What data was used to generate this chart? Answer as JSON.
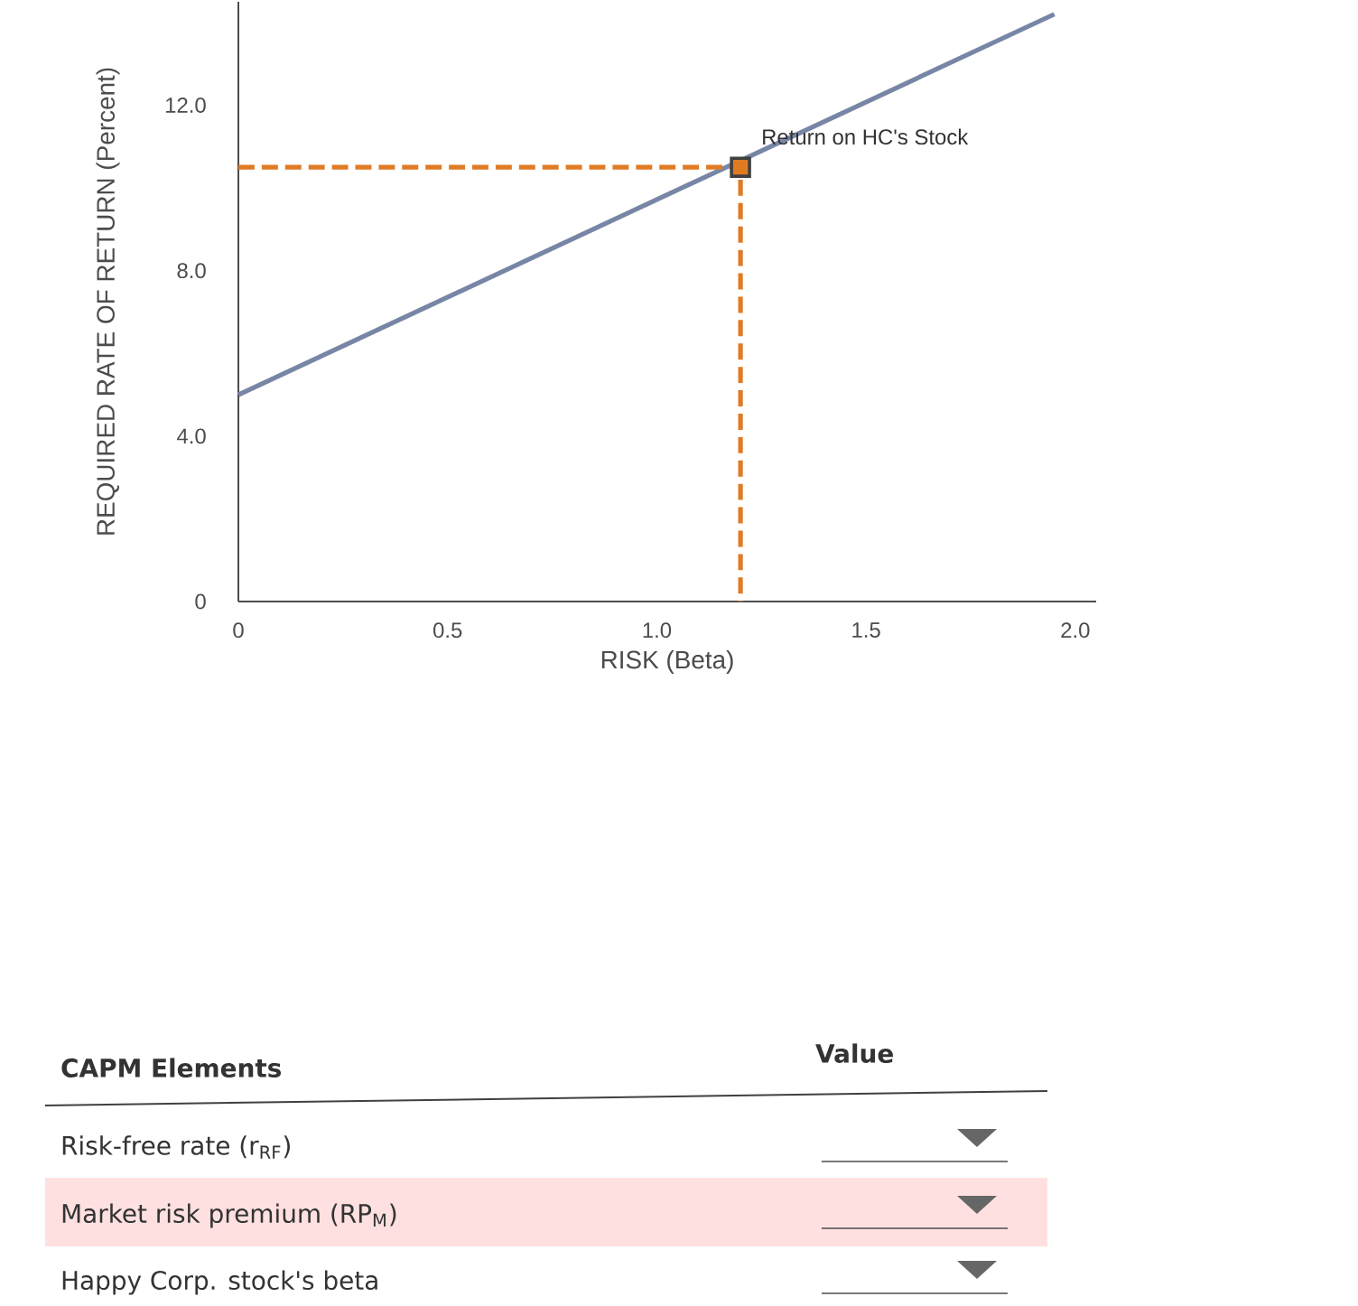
{
  "chart_data": {
    "type": "line",
    "xlabel": "RISK (Beta)",
    "ylabel": "REQUIRED RATE OF RETURN (Percent)",
    "xlim": [
      0,
      2.05
    ],
    "ylim": [
      0,
      14.5
    ],
    "xticks": [
      {
        "value": 0,
        "label": "0"
      },
      0.5,
      {
        "value": 1,
        "label": "1.0"
      },
      1.5,
      {
        "value": 2,
        "label": "2.0"
      }
    ],
    "yticks": [
      0,
      {
        "value": 4,
        "label": "4.0"
      },
      {
        "value": 8,
        "label": "8.0"
      },
      {
        "value": 12,
        "label": "12.0"
      }
    ],
    "series": [
      {
        "color": "#7886a6",
        "x": [
          0,
          1.95
        ],
        "values": [
          5.0,
          14.2
        ],
        "line_style": "solid"
      },
      {
        "color": "#e07b24",
        "x": [
          0,
          1.2,
          1.2
        ],
        "values": [
          10.5,
          10.5,
          0
        ],
        "line_style": "dashed"
      },
      {
        "type": "scatter",
        "color": "#e07b24",
        "x": [
          1.2
        ],
        "values": [
          10.5
        ],
        "marker": "square"
      }
    ],
    "annotations": [
      {
        "text": "Return on HC's Stock",
        "x": 1.2,
        "y": 10.5
      },
      "CAPM Elements",
      "Value",
      "Risk-free rate (r$_{RF}$)",
      "Market risk premium (RP$_{M}$)",
      "Happy Corp. stock's beta"
    ],
    "grid": false
  }
}
